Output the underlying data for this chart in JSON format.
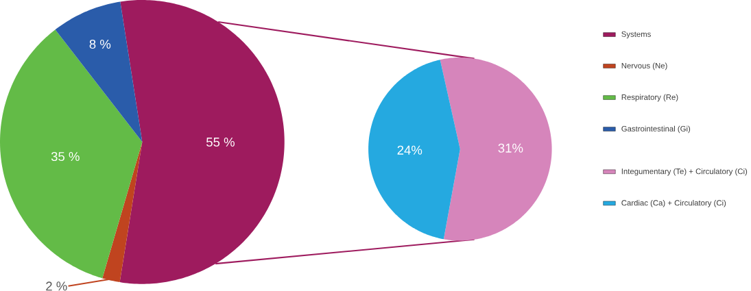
{
  "chart_data": [
    {
      "type": "pie",
      "categories": [
        "Systems",
        "Nervous (Ne)",
        "Respiratory (Re)",
        "Gastrointestinal (Gi)"
      ],
      "values": [
        55,
        2,
        35,
        8
      ],
      "colors": [
        "#9e1b5e",
        "#c0441f",
        "#63bb47",
        "#2a5caa"
      ],
      "value_labels": [
        "55 %",
        "2 %",
        "35 %",
        "8 %"
      ],
      "legend": "right"
    },
    {
      "type": "pie",
      "categories": [
        "Integumentary (Te) + Circulatory (Ci)",
        "Cardiac (Ca) + Circulatory (Ci)"
      ],
      "values": [
        31,
        24
      ],
      "colors": [
        "#d685bb",
        "#25a9e0"
      ],
      "value_labels": [
        "31%",
        "24%"
      ],
      "legend": "right"
    }
  ]
}
